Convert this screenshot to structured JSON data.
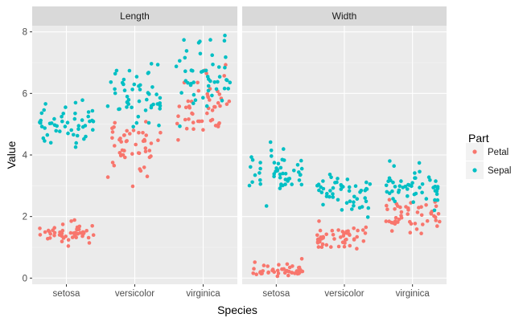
{
  "chart_data": {
    "type": "scatter",
    "xlabel": "Species",
    "ylabel": "Value",
    "categories": [
      "setosa",
      "versicolor",
      "virginica"
    ],
    "yticks": [
      0,
      2,
      4,
      6,
      8
    ],
    "ylim": [
      -0.2,
      8.2
    ],
    "grid": true,
    "legend": {
      "title": "Part",
      "position": "right",
      "entries": [
        {
          "name": "Petal",
          "color": "#F8766D"
        },
        {
          "name": "Sepal",
          "color": "#00BFC4"
        }
      ]
    },
    "panels": [
      {
        "name": "Length",
        "series": [
          {
            "name": "Petal",
            "color": "#F8766D",
            "values": [
              [
                1.4,
                1.4,
                1.3,
                1.5,
                1.4,
                1.7,
                1.4,
                1.5,
                1.4,
                1.5,
                1.5,
                1.6,
                1.4,
                1.1,
                1.2,
                1.5,
                1.3,
                1.4,
                1.7,
                1.5,
                1.7,
                1.5,
                1.0,
                1.7,
                1.9,
                1.6,
                1.6,
                1.5,
                1.4,
                1.6,
                1.6,
                1.5,
                1.5,
                1.4,
                1.5,
                1.2,
                1.3,
                1.4,
                1.3,
                1.5,
                1.3,
                1.3,
                1.3,
                1.6,
                1.9,
                1.4,
                1.6,
                1.4,
                1.5,
                1.4
              ],
              [
                4.7,
                4.5,
                4.9,
                4.0,
                4.6,
                4.5,
                4.7,
                3.3,
                4.6,
                3.9,
                3.5,
                4.2,
                4.0,
                4.7,
                3.6,
                4.4,
                4.5,
                4.1,
                4.5,
                3.9,
                4.8,
                4.0,
                4.9,
                4.7,
                4.3,
                4.4,
                4.8,
                5.0,
                4.5,
                3.5,
                3.8,
                3.7,
                3.9,
                5.1,
                4.5,
                4.5,
                4.7,
                4.4,
                4.1,
                4.0,
                4.4,
                4.6,
                4.0,
                3.3,
                4.2,
                4.2,
                4.2,
                4.3,
                3.0,
                4.1
              ],
              [
                6.0,
                5.1,
                5.9,
                5.6,
                5.8,
                6.6,
                4.5,
                6.3,
                5.8,
                6.1,
                5.1,
                5.3,
                5.5,
                5.0,
                5.1,
                5.3,
                5.5,
                6.7,
                6.9,
                5.0,
                5.7,
                4.9,
                6.7,
                4.9,
                5.7,
                6.0,
                4.8,
                4.9,
                5.6,
                5.8,
                6.1,
                6.4,
                5.6,
                5.1,
                5.6,
                6.1,
                5.6,
                5.5,
                4.8,
                5.4,
                5.6,
                5.1,
                5.1,
                5.9,
                5.7,
                5.2,
                5.0,
                5.2,
                5.4,
                5.1
              ]
            ]
          },
          {
            "name": "Sepal",
            "color": "#00BFC4",
            "values": [
              [
                5.1,
                4.9,
                4.7,
                4.6,
                5.0,
                5.4,
                4.6,
                5.0,
                4.4,
                4.9,
                5.4,
                4.8,
                4.8,
                4.3,
                5.8,
                5.7,
                5.4,
                5.1,
                5.7,
                5.1,
                5.4,
                5.1,
                4.6,
                5.1,
                4.8,
                5.0,
                5.0,
                5.2,
                5.2,
                4.7,
                4.8,
                5.4,
                5.2,
                5.5,
                4.9,
                5.0,
                5.5,
                4.9,
                4.4,
                5.1,
                5.0,
                4.5,
                4.4,
                5.0,
                5.1,
                4.8,
                5.1,
                4.6,
                5.3,
                5.0
              ],
              [
                7.0,
                6.4,
                6.9,
                5.5,
                6.5,
                5.7,
                6.3,
                4.9,
                6.6,
                5.2,
                5.0,
                5.9,
                6.0,
                6.1,
                5.6,
                6.7,
                5.6,
                5.8,
                6.2,
                5.6,
                5.9,
                6.1,
                6.3,
                6.1,
                6.4,
                6.6,
                6.8,
                6.7,
                6.0,
                5.7,
                5.5,
                5.5,
                5.8,
                6.0,
                5.4,
                6.0,
                6.7,
                6.3,
                5.6,
                5.5,
                5.5,
                6.1,
                5.8,
                5.0,
                5.6,
                5.7,
                5.7,
                6.2,
                5.1,
                5.7
              ],
              [
                6.3,
                5.8,
                7.1,
                6.3,
                6.5,
                7.6,
                4.9,
                7.3,
                6.7,
                7.2,
                6.5,
                6.4,
                6.8,
                5.7,
                5.8,
                6.4,
                6.5,
                7.7,
                7.7,
                6.0,
                6.9,
                5.6,
                7.7,
                6.3,
                6.7,
                7.2,
                6.2,
                6.1,
                6.4,
                7.2,
                7.4,
                7.9,
                6.4,
                6.3,
                6.1,
                7.7,
                6.3,
                6.4,
                6.0,
                6.9,
                6.7,
                6.9,
                5.8,
                6.8,
                6.7,
                6.7,
                6.3,
                6.5,
                6.2,
                5.9
              ]
            ]
          }
        ]
      },
      {
        "name": "Width",
        "series": [
          {
            "name": "Petal",
            "color": "#F8766D",
            "values": [
              [
                0.2,
                0.2,
                0.2,
                0.2,
                0.2,
                0.4,
                0.3,
                0.2,
                0.2,
                0.1,
                0.2,
                0.2,
                0.1,
                0.1,
                0.2,
                0.4,
                0.4,
                0.3,
                0.3,
                0.3,
                0.2,
                0.4,
                0.2,
                0.5,
                0.2,
                0.2,
                0.4,
                0.2,
                0.2,
                0.2,
                0.2,
                0.4,
                0.1,
                0.2,
                0.2,
                0.2,
                0.2,
                0.1,
                0.2,
                0.2,
                0.3,
                0.3,
                0.2,
                0.6,
                0.4,
                0.3,
                0.2,
                0.2,
                0.2,
                0.2
              ],
              [
                1.4,
                1.5,
                1.5,
                1.3,
                1.5,
                1.3,
                1.6,
                1.0,
                1.3,
                1.4,
                1.0,
                1.5,
                1.0,
                1.4,
                1.3,
                1.4,
                1.5,
                1.0,
                1.5,
                1.1,
                1.8,
                1.3,
                1.5,
                1.2,
                1.3,
                1.4,
                1.4,
                1.7,
                1.5,
                1.0,
                1.1,
                1.0,
                1.2,
                1.6,
                1.5,
                1.6,
                1.5,
                1.3,
                1.3,
                1.3,
                1.2,
                1.4,
                1.2,
                1.0,
                1.3,
                1.2,
                1.3,
                1.3,
                1.1,
                1.3
              ],
              [
                2.5,
                1.9,
                2.1,
                1.8,
                2.2,
                2.1,
                1.7,
                1.8,
                1.8,
                2.5,
                2.0,
                1.9,
                2.1,
                2.0,
                2.4,
                2.3,
                1.8,
                2.2,
                2.3,
                1.5,
                2.3,
                2.0,
                2.0,
                1.8,
                2.1,
                1.8,
                1.8,
                1.8,
                2.1,
                1.6,
                1.9,
                2.0,
                2.2,
                1.5,
                1.4,
                2.3,
                2.4,
                1.8,
                1.8,
                2.1,
                2.4,
                2.3,
                1.9,
                2.3,
                2.5,
                2.3,
                1.9,
                2.0,
                2.3,
                1.8
              ]
            ]
          },
          {
            "name": "Sepal",
            "color": "#00BFC4",
            "values": [
              [
                3.5,
                3.0,
                3.2,
                3.1,
                3.6,
                3.9,
                3.4,
                3.4,
                2.9,
                3.1,
                3.7,
                3.4,
                3.0,
                3.0,
                4.0,
                4.4,
                3.9,
                3.5,
                3.8,
                3.8,
                3.4,
                3.7,
                3.6,
                3.3,
                3.4,
                3.0,
                3.4,
                3.5,
                3.4,
                3.2,
                3.1,
                3.4,
                4.1,
                4.2,
                3.1,
                3.2,
                3.5,
                3.6,
                3.0,
                3.4,
                3.5,
                2.3,
                3.2,
                3.5,
                3.8,
                3.0,
                3.8,
                3.2,
                3.7,
                3.3
              ],
              [
                3.2,
                3.2,
                3.1,
                2.3,
                2.8,
                2.8,
                3.3,
                2.4,
                2.9,
                2.7,
                2.0,
                3.0,
                2.2,
                2.9,
                2.9,
                3.1,
                3.0,
                2.7,
                2.2,
                2.5,
                3.2,
                2.8,
                2.5,
                2.8,
                2.9,
                3.0,
                2.8,
                3.0,
                2.9,
                2.6,
                2.4,
                2.4,
                2.7,
                2.7,
                3.0,
                3.4,
                3.1,
                2.3,
                3.0,
                2.5,
                2.6,
                3.0,
                2.6,
                2.3,
                2.7,
                3.0,
                2.9,
                2.9,
                2.5,
                2.8
              ],
              [
                3.3,
                2.7,
                3.0,
                2.9,
                3.0,
                3.0,
                2.5,
                2.9,
                2.5,
                3.6,
                3.2,
                2.7,
                3.0,
                2.5,
                2.8,
                3.2,
                3.0,
                3.8,
                2.6,
                2.2,
                3.2,
                2.8,
                2.8,
                2.7,
                3.3,
                3.2,
                2.8,
                3.0,
                2.8,
                3.0,
                2.8,
                3.8,
                2.8,
                2.8,
                2.6,
                3.0,
                3.4,
                3.1,
                3.0,
                3.1,
                3.1,
                3.1,
                2.7,
                3.2,
                3.3,
                3.0,
                2.5,
                3.0,
                3.4,
                3.0
              ]
            ]
          }
        ]
      }
    ]
  }
}
